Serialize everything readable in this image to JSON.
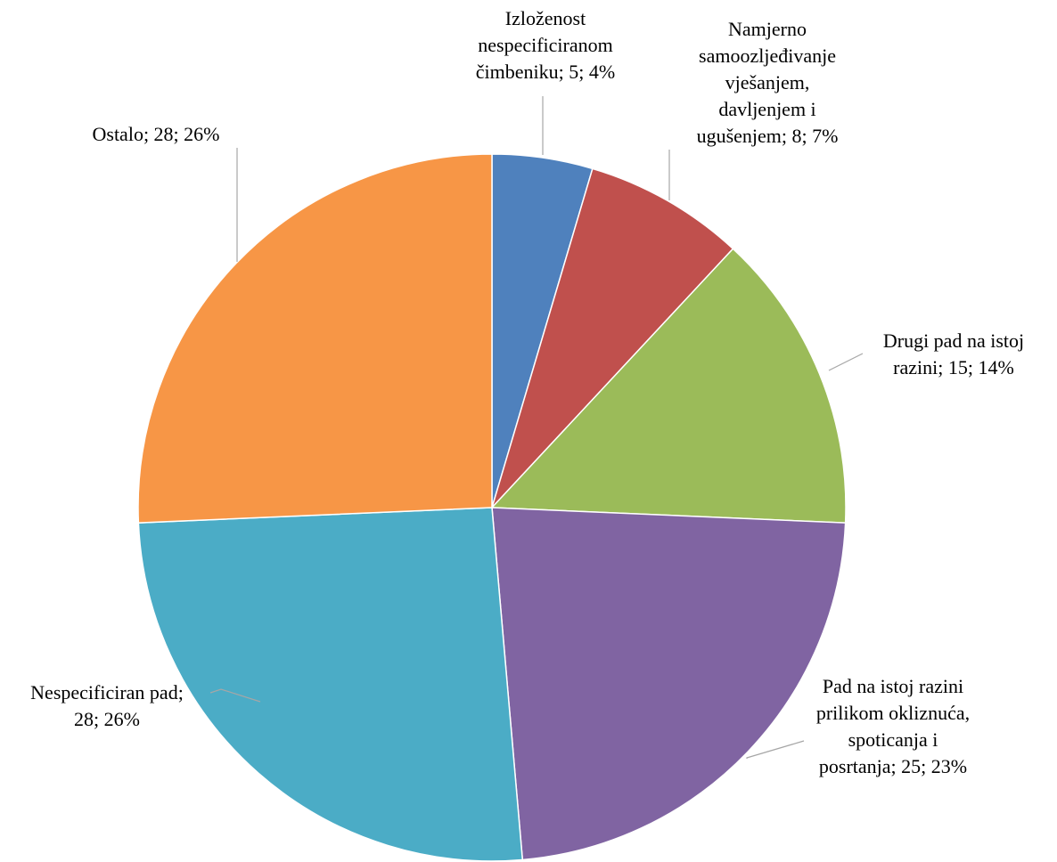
{
  "chart_data": {
    "type": "pie",
    "title": "",
    "start_angle_deg": 0,
    "direction": "clockwise",
    "legend": "none",
    "slices": [
      {
        "label_lines": [
          "Izloženost",
          "nespecificiranom",
          "čimbeniku; 5; 4%"
        ],
        "value": 5,
        "percent": 4,
        "color": "#4f81bd"
      },
      {
        "label_lines": [
          "Namjerno",
          "samoozljeđivanje",
          "vješanjem,",
          "davljenjem  i",
          "ugušenjem; 8; 7%"
        ],
        "value": 8,
        "percent": 7,
        "color": "#c0504d"
      },
      {
        "label_lines": [
          "Drugi pad na istoj",
          "razini; 15; 14%"
        ],
        "value": 15,
        "percent": 14,
        "color": "#9bbb59"
      },
      {
        "label_lines": [
          "Pad na istoj razini",
          "prilikom  okliznuća,",
          "spoticanja i",
          "posrtanja; 25; 23%"
        ],
        "value": 25,
        "percent": 23,
        "color": "#8064a2"
      },
      {
        "label_lines": [
          "Nespecificiran pad;",
          "28; 26%"
        ],
        "value": 28,
        "percent": 26,
        "color": "#4bacc6"
      },
      {
        "label_lines": [
          "Ostalo; 28; 26%"
        ],
        "value": 28,
        "percent": 26,
        "color": "#f79646"
      }
    ]
  }
}
